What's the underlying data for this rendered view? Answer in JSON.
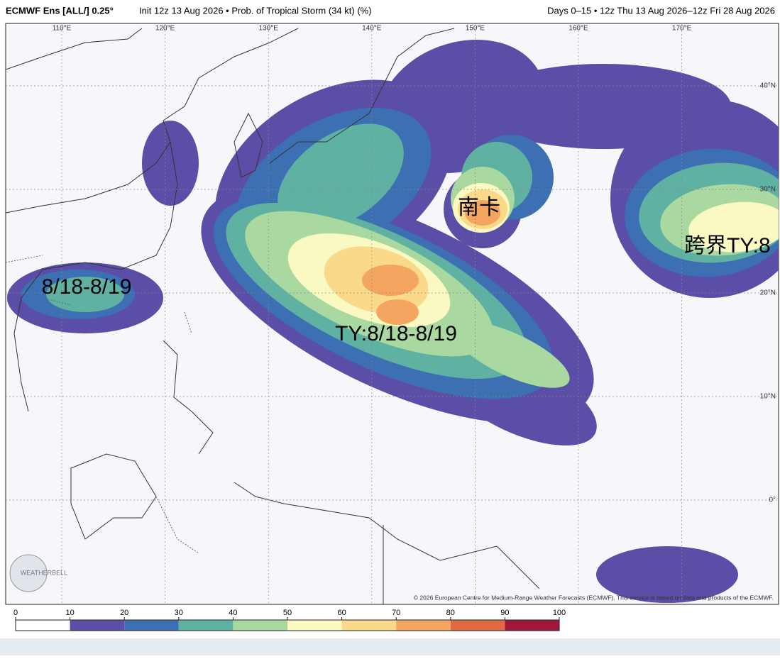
{
  "header": {
    "model": "ECMWF Ens [ALL/] 0.25°",
    "left": "Init 12z 13 Aug 2026 • Prob. of Tropical Storm (34 kt) (%)",
    "right": "Days 0–15 • 12z Thu 13 Aug 2026–12z Fri 28 Aug 2026"
  },
  "map": {
    "lon_labels": [
      "110°E",
      "120°E",
      "130°E",
      "140°E",
      "150°E",
      "160°E",
      "170°E"
    ],
    "lat_labels": [
      "40°N",
      "30°N",
      "20°N",
      "10°N",
      "0°"
    ],
    "annotations": [
      "南卡",
      "8/18-8/19",
      "TY:8/18-8/19",
      "跨界TY:8"
    ],
    "watermark": "WEATHERBELL",
    "copyright": "© 2026 European Centre for Medium-Range Weather Forecasts (ECMWF). This service is based on data and products of the ECMWF."
  },
  "colorbar": {
    "ticks": [
      0,
      10,
      20,
      30,
      40,
      50,
      60,
      70,
      80,
      90,
      100
    ],
    "colors": [
      "#ffffff",
      "#5a4ea6",
      "#3d70b3",
      "#5fb2a2",
      "#a9d9a0",
      "#fbf9c2",
      "#fbd98b",
      "#f4a660",
      "#df6940",
      "#a1173c"
    ]
  }
}
